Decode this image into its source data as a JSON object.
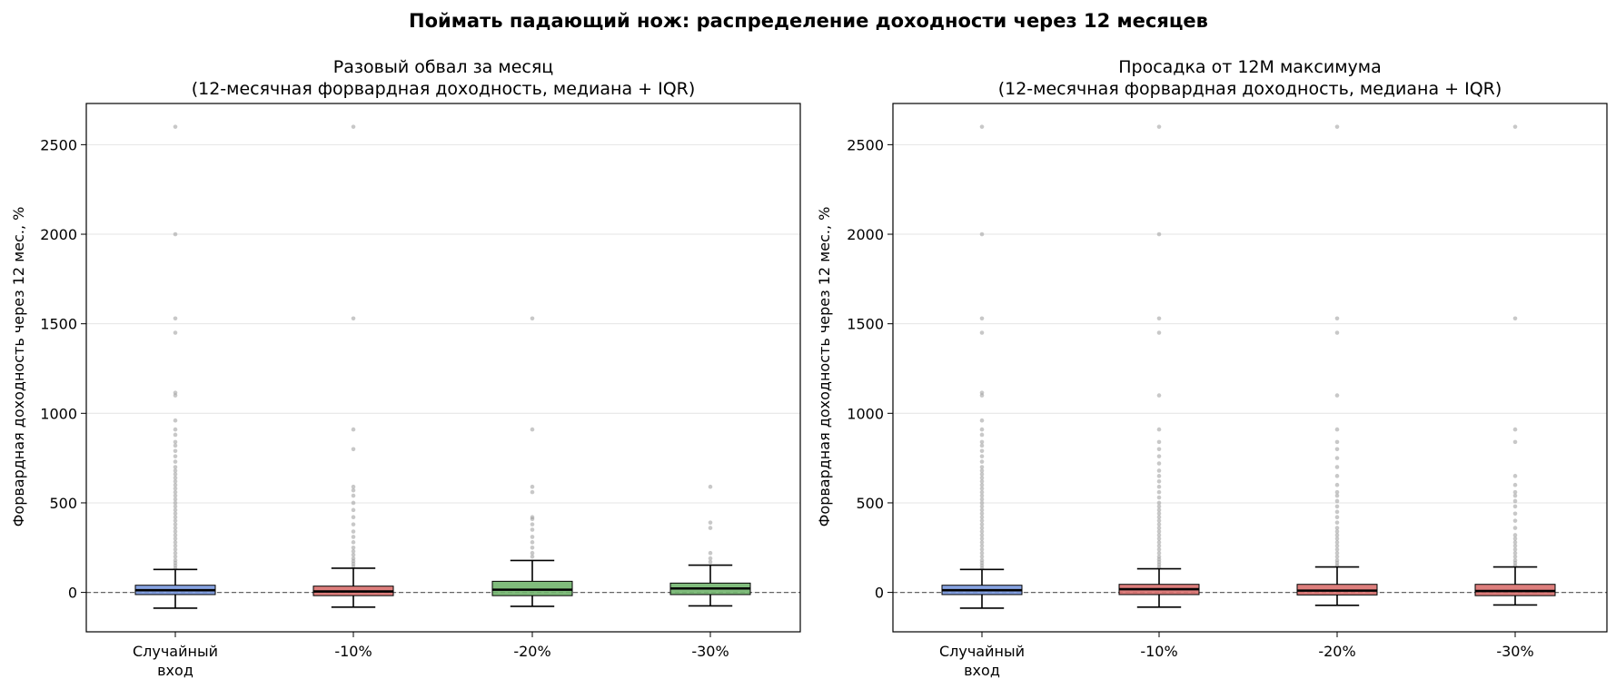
{
  "figure": {
    "suptitle": "Поймать падающий нож: распределение доходности через 12 месяцев"
  },
  "colors": {
    "random": "#7b9ae0",
    "red": "#d9706e",
    "green": "#72b56e",
    "outlier": "#9a9a9a",
    "zero_line": "#666666",
    "grid": "#e4e4e4"
  },
  "chart_data": [
    {
      "type": "box",
      "title_line1": "Разовый обвал за месяц",
      "title_line2": "(12-месячная форвардная доходность, медиана + IQR)",
      "ylabel": "Форвардная доходность через 12 мес., %",
      "xlabel": "",
      "ylim": [
        -220,
        2730
      ],
      "yticks": [
        0,
        500,
        1000,
        1500,
        2000,
        2500
      ],
      "grid": "y",
      "reference_line": 0,
      "categories": [
        {
          "line1": "Случайный",
          "line2": "вход"
        },
        {
          "line1": "-10%",
          "line2": ""
        },
        {
          "line1": "-20%",
          "line2": ""
        },
        {
          "line1": "-30%",
          "line2": ""
        }
      ],
      "boxes": [
        {
          "color": "random",
          "whisker_low": -88,
          "q1": -12,
          "median": 12,
          "q3": 40,
          "whisker_high": 128,
          "outliers": [
            135,
            150,
            165,
            180,
            200,
            220,
            240,
            260,
            280,
            300,
            320,
            340,
            360,
            380,
            400,
            420,
            440,
            460,
            480,
            500,
            520,
            540,
            560,
            580,
            600,
            620,
            640,
            660,
            680,
            700,
            730,
            760,
            790,
            820,
            840,
            880,
            910,
            960,
            1100,
            1115,
            1450,
            1530,
            2000,
            2600
          ]
        },
        {
          "color": "red",
          "whisker_low": -82,
          "q1": -18,
          "median": 5,
          "q3": 35,
          "whisker_high": 135,
          "outliers": [
            145,
            160,
            175,
            190,
            210,
            230,
            250,
            280,
            310,
            340,
            380,
            420,
            460,
            500,
            540,
            570,
            590,
            800,
            910,
            1530,
            2600
          ]
        },
        {
          "color": "green",
          "whisker_low": -78,
          "q1": -18,
          "median": 15,
          "q3": 62,
          "whisker_high": 178,
          "outliers": [
            200,
            220,
            250,
            280,
            310,
            350,
            380,
            410,
            420,
            560,
            590,
            910,
            1530
          ]
        },
        {
          "color": "green",
          "whisker_low": -75,
          "q1": -12,
          "median": 22,
          "q3": 52,
          "whisker_high": 152,
          "outliers": [
            170,
            190,
            220,
            360,
            390,
            590
          ]
        }
      ]
    },
    {
      "type": "box",
      "title_line1": "Просадка от 12М максимума",
      "title_line2": "(12-месячная форвардная доходность, медиана + IQR)",
      "ylabel": "Форвардная доходность через 12 мес., %",
      "xlabel": "",
      "ylim": [
        -220,
        2730
      ],
      "yticks": [
        0,
        500,
        1000,
        1500,
        2000,
        2500
      ],
      "grid": "y",
      "reference_line": 0,
      "categories": [
        {
          "line1": "Случайный",
          "line2": "вход"
        },
        {
          "line1": "-10%",
          "line2": ""
        },
        {
          "line1": "-20%",
          "line2": ""
        },
        {
          "line1": "-30%",
          "line2": ""
        }
      ],
      "boxes": [
        {
          "color": "random",
          "whisker_low": -88,
          "q1": -12,
          "median": 12,
          "q3": 40,
          "whisker_high": 128,
          "outliers": [
            135,
            150,
            165,
            180,
            200,
            220,
            240,
            260,
            280,
            300,
            320,
            340,
            360,
            380,
            400,
            420,
            440,
            460,
            480,
            500,
            520,
            540,
            560,
            580,
            600,
            620,
            640,
            660,
            680,
            700,
            730,
            760,
            790,
            820,
            840,
            880,
            910,
            960,
            1100,
            1115,
            1450,
            1530,
            2000,
            2600
          ]
        },
        {
          "color": "red",
          "whisker_low": -82,
          "q1": -12,
          "median": 18,
          "q3": 45,
          "whisker_high": 132,
          "outliers": [
            140,
            155,
            170,
            185,
            200,
            220,
            240,
            260,
            280,
            300,
            320,
            340,
            360,
            380,
            400,
            420,
            440,
            460,
            480,
            500,
            530,
            560,
            590,
            620,
            650,
            680,
            720,
            760,
            800,
            840,
            910,
            1100,
            1450,
            1530,
            2000,
            2600
          ]
        },
        {
          "color": "red",
          "whisker_low": -72,
          "q1": -14,
          "median": 10,
          "q3": 45,
          "whisker_high": 142,
          "outliers": [
            150,
            165,
            180,
            200,
            220,
            240,
            260,
            280,
            300,
            320,
            340,
            360,
            390,
            420,
            450,
            480,
            510,
            540,
            560,
            600,
            650,
            700,
            750,
            800,
            840,
            910,
            1100,
            1450,
            1530,
            2600
          ]
        },
        {
          "color": "red",
          "whisker_low": -70,
          "q1": -18,
          "median": 8,
          "q3": 45,
          "whisker_high": 142,
          "outliers": [
            150,
            165,
            180,
            200,
            220,
            240,
            260,
            280,
            300,
            320,
            360,
            400,
            440,
            480,
            510,
            540,
            560,
            600,
            650,
            840,
            910,
            1530,
            2600
          ]
        }
      ]
    }
  ]
}
